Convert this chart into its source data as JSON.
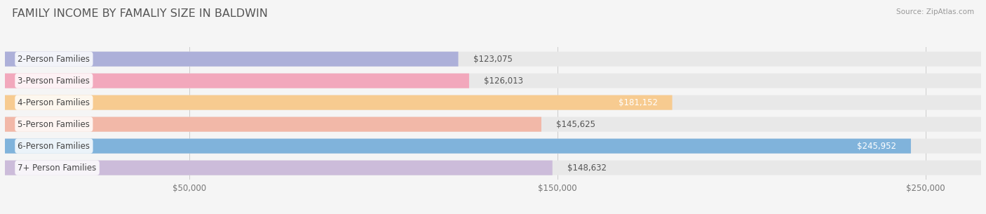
{
  "title": "FAMILY INCOME BY FAMALIY SIZE IN BALDWIN",
  "source": "Source: ZipAtlas.com",
  "categories": [
    "2-Person Families",
    "3-Person Families",
    "4-Person Families",
    "5-Person Families",
    "6-Person Families",
    "7+ Person Families"
  ],
  "values": [
    123075,
    126013,
    181152,
    145625,
    245952,
    148632
  ],
  "bar_colors": [
    "#adb0d9",
    "#f2a8bc",
    "#f7cb90",
    "#f2b8a8",
    "#80b3db",
    "#ccbcda"
  ],
  "label_colors": [
    "#555555",
    "#555555",
    "#ffffff",
    "#555555",
    "#ffffff",
    "#555555"
  ],
  "value_inside": [
    false,
    false,
    true,
    false,
    true,
    false
  ],
  "xlim": [
    0,
    265000
  ],
  "xticks": [
    50000,
    150000,
    250000
  ],
  "xtick_labels": [
    "$50,000",
    "$150,000",
    "$250,000"
  ],
  "bg_color": "#f5f5f5",
  "row_bg_color": "#e8e8e8",
  "title_fontsize": 11.5,
  "label_fontsize": 8.5,
  "value_fontsize": 8.5
}
